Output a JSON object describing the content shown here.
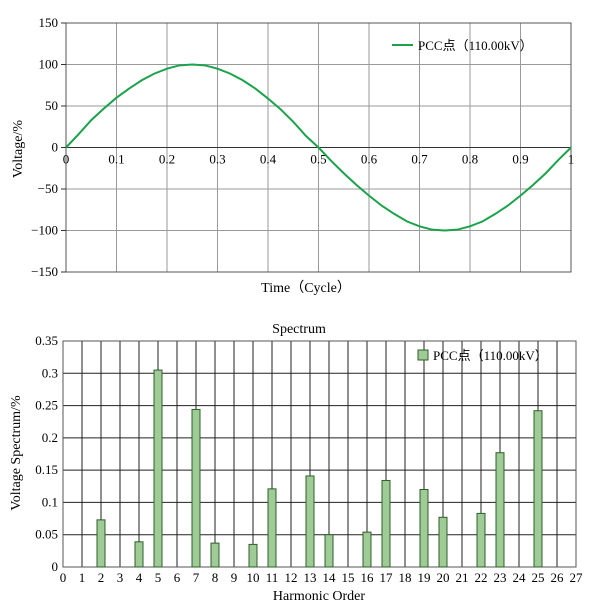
{
  "chart_data": [
    {
      "type": "line",
      "title": "",
      "xlabel": "Time（Cycle）",
      "ylabel": "Voltage/%",
      "xlim": [
        0,
        1
      ],
      "ylim": [
        -150,
        150
      ],
      "x_ticks": [
        "0",
        "0.1",
        "0.2",
        "0.3",
        "0.4",
        "0.5",
        "0.6",
        "0.7",
        "0.8",
        "0.9",
        "1"
      ],
      "y_ticks": [
        "150",
        "100",
        "50",
        "0",
        "−50",
        "−100",
        "−150"
      ],
      "grid": true,
      "legend_position": "top-right",
      "series": [
        {
          "name": "PCC点（110.00kV）",
          "color": "#1aa34a",
          "x": [
            0,
            0.025,
            0.05,
            0.075,
            0.1,
            0.125,
            0.15,
            0.175,
            0.2,
            0.225,
            0.25,
            0.275,
            0.3,
            0.325,
            0.35,
            0.375,
            0.4,
            0.425,
            0.45,
            0.475,
            0.5,
            0.525,
            0.55,
            0.575,
            0.6,
            0.625,
            0.65,
            0.675,
            0.7,
            0.725,
            0.75,
            0.775,
            0.8,
            0.825,
            0.85,
            0.875,
            0.9,
            0.925,
            0.95,
            0.975,
            1
          ],
          "y": [
            0,
            16,
            33,
            47,
            60,
            71,
            81,
            89,
            95,
            99,
            100,
            99,
            95,
            89,
            81,
            71,
            59,
            46,
            31,
            14,
            0,
            -16,
            -31,
            -45,
            -58,
            -70,
            -80,
            -89,
            -95,
            -99,
            -100,
            -99,
            -95,
            -89,
            -80,
            -70,
            -58,
            -45,
            -31,
            -15,
            0
          ]
        }
      ]
    },
    {
      "type": "bar",
      "title": "Spectrum",
      "xlabel": "Harmonic Order",
      "ylabel": "Voltage Spectrum/%",
      "xlim": [
        0,
        27
      ],
      "ylim": [
        0,
        0.35
      ],
      "x_ticks": [
        "0",
        "1",
        "2",
        "3",
        "4",
        "5",
        "6",
        "7",
        "8",
        "9",
        "10",
        "11",
        "12",
        "13",
        "14",
        "15",
        "16",
        "17",
        "18",
        "19",
        "20",
        "21",
        "22",
        "23",
        "24",
        "25",
        "26",
        "27"
      ],
      "y_ticks": [
        "0.35",
        "0.3",
        "0.25",
        "0.2",
        "0.15",
        "0.1",
        "0.05",
        "0"
      ],
      "grid": true,
      "legend_position": "top-right",
      "series": [
        {
          "name": "PCC点（110.00kV）",
          "color": "#9fcb96",
          "x": [
            2,
            4,
            5,
            7,
            8,
            10,
            11,
            13,
            14,
            16,
            17,
            19,
            20,
            22,
            23,
            25
          ],
          "values": [
            0.073,
            0.039,
            0.305,
            0.244,
            0.037,
            0.035,
            0.121,
            0.141,
            0.05,
            0.054,
            0.134,
            0.12,
            0.077,
            0.083,
            0.177,
            0.242
          ]
        }
      ]
    }
  ]
}
